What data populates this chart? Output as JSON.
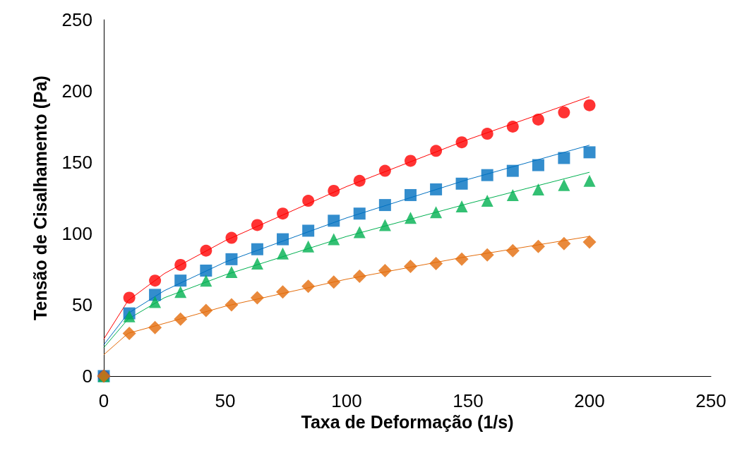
{
  "chart_data": {
    "type": "scatter",
    "xlabel": "Taxa de Deformação (1/s)",
    "ylabel": "Tensão de Cisalhamento (Pa)",
    "xlim": [
      0,
      250
    ],
    "xticks": [
      0,
      50,
      100,
      150,
      200,
      250
    ],
    "ylim": [
      0,
      250
    ],
    "yticks": [
      0,
      50,
      100,
      150,
      200,
      250
    ],
    "grid": false,
    "x": [
      0,
      10.5,
      21.1,
      31.6,
      42.1,
      52.6,
      63.2,
      73.7,
      84.2,
      94.7,
      105.3,
      115.8,
      126.3,
      136.8,
      147.4,
      157.9,
      168.4,
      178.9,
      189.5,
      200
    ],
    "series": [
      {
        "marker": "circle",
        "color": "#ff0000",
        "values": [
          0,
          55,
          67,
          78,
          88,
          97,
          106,
          114,
          123,
          130,
          137,
          144,
          151,
          158,
          164,
          170,
          175,
          180,
          185,
          190
        ]
      },
      {
        "marker": "square",
        "color": "#0070c0",
        "values": [
          0,
          44,
          57,
          67,
          74,
          82,
          89,
          96,
          102,
          109,
          114,
          120,
          127,
          131,
          135,
          141,
          144,
          148,
          153,
          157
        ]
      },
      {
        "marker": "triangle",
        "color": "#00b050",
        "values": [
          0,
          42,
          52,
          59,
          67,
          73,
          79,
          86,
          91,
          96,
          101,
          106,
          111,
          115,
          119,
          123,
          127,
          131,
          134,
          137
        ]
      },
      {
        "marker": "diamond",
        "color": "#e46c0a",
        "values": [
          0,
          30,
          34,
          40,
          46,
          50,
          55,
          59,
          63,
          66,
          70,
          74,
          77,
          79,
          82,
          85,
          88,
          91,
          93,
          94
        ]
      },
      {
        "type": "line",
        "marker": "none",
        "color": "#ff0000",
        "x": [
          0,
          10,
          25,
          50,
          100,
          150,
          200
        ],
        "values": [
          26,
          53,
          72,
          95,
          133,
          166,
          196
        ]
      },
      {
        "type": "line",
        "marker": "none",
        "color": "#0070c0",
        "x": [
          0,
          10,
          25,
          50,
          100,
          150,
          200
        ],
        "values": [
          22,
          44,
          60,
          80,
          111,
          138,
          162
        ]
      },
      {
        "type": "line",
        "marker": "none",
        "color": "#00b050",
        "x": [
          0,
          10,
          25,
          50,
          100,
          150,
          200
        ],
        "values": [
          20,
          40,
          55,
          71,
          98,
          121,
          143
        ]
      },
      {
        "type": "line",
        "marker": "none",
        "color": "#e46c0a",
        "x": [
          0,
          10,
          25,
          50,
          100,
          150,
          200
        ],
        "values": [
          15,
          30,
          37,
          49,
          68,
          84,
          98
        ]
      }
    ]
  }
}
